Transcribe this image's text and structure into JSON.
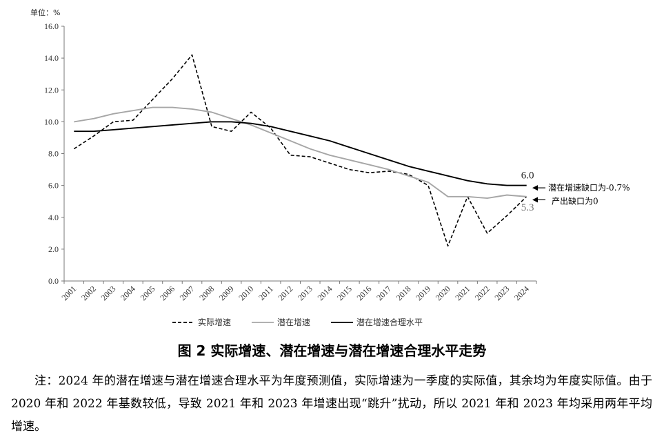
{
  "chart_data": {
    "type": "line",
    "unit_label": "单位：%",
    "x": [
      "2001",
      "2002",
      "2003",
      "2004",
      "2005",
      "2006",
      "2007",
      "2008",
      "2009",
      "2010",
      "2011",
      "2012",
      "2013",
      "2014",
      "2015",
      "2016",
      "2017",
      "2018",
      "2019",
      "2020",
      "2021",
      "2022",
      "2023",
      "2024"
    ],
    "ylim": [
      0,
      16
    ],
    "yticks": [
      "0.0",
      "2.0",
      "4.0",
      "6.0",
      "8.0",
      "10.0",
      "12.0",
      "14.0",
      "16.0"
    ],
    "series": [
      {
        "name": "实际增速",
        "style": "dashed",
        "color": "#000000",
        "values": [
          8.3,
          9.1,
          10.0,
          10.1,
          11.4,
          12.7,
          14.2,
          9.7,
          9.4,
          10.6,
          9.6,
          7.9,
          7.8,
          7.4,
          7.0,
          6.8,
          6.9,
          6.7,
          6.0,
          2.2,
          5.3,
          3.0,
          4.1,
          5.3
        ]
      },
      {
        "name": "潜在增速",
        "style": "solid",
        "color": "#a6a6a6",
        "values": [
          10.0,
          10.2,
          10.5,
          10.7,
          10.9,
          10.9,
          10.8,
          10.6,
          10.2,
          9.8,
          9.3,
          8.8,
          8.3,
          7.9,
          7.6,
          7.3,
          7.0,
          6.6,
          6.2,
          5.3,
          5.3,
          5.2,
          5.4,
          5.3
        ]
      },
      {
        "name": "潜在增速合理水平",
        "style": "solid",
        "color": "#000000",
        "values": [
          9.4,
          9.4,
          9.5,
          9.6,
          9.7,
          9.8,
          9.9,
          10.0,
          10.0,
          9.9,
          9.7,
          9.4,
          9.1,
          8.8,
          8.4,
          8.0,
          7.6,
          7.2,
          6.9,
          6.6,
          6.3,
          6.1,
          6.0,
          6.0
        ]
      }
    ],
    "end_labels": {
      "upper": "6.0",
      "lower": "5.3"
    },
    "annotations": {
      "upper": "潜在增速缺口为-0.7%",
      "lower": "产出缺口为0"
    },
    "legend_position": "bottom"
  },
  "caption": "图 2  实际增速、潜在增速与潜在增速合理水平走势",
  "note": "注：2024 年的潜在增速与潜在增速合理水平为年度预测值，实际增速为一季度的实际值，其余均为年度实际值。由于 2020 年和 2022 年基数较低，导致 2021 年和 2023 年增速出现“跳升”扰动，所以 2021 年和 2023 年均采用两年平均增速。"
}
